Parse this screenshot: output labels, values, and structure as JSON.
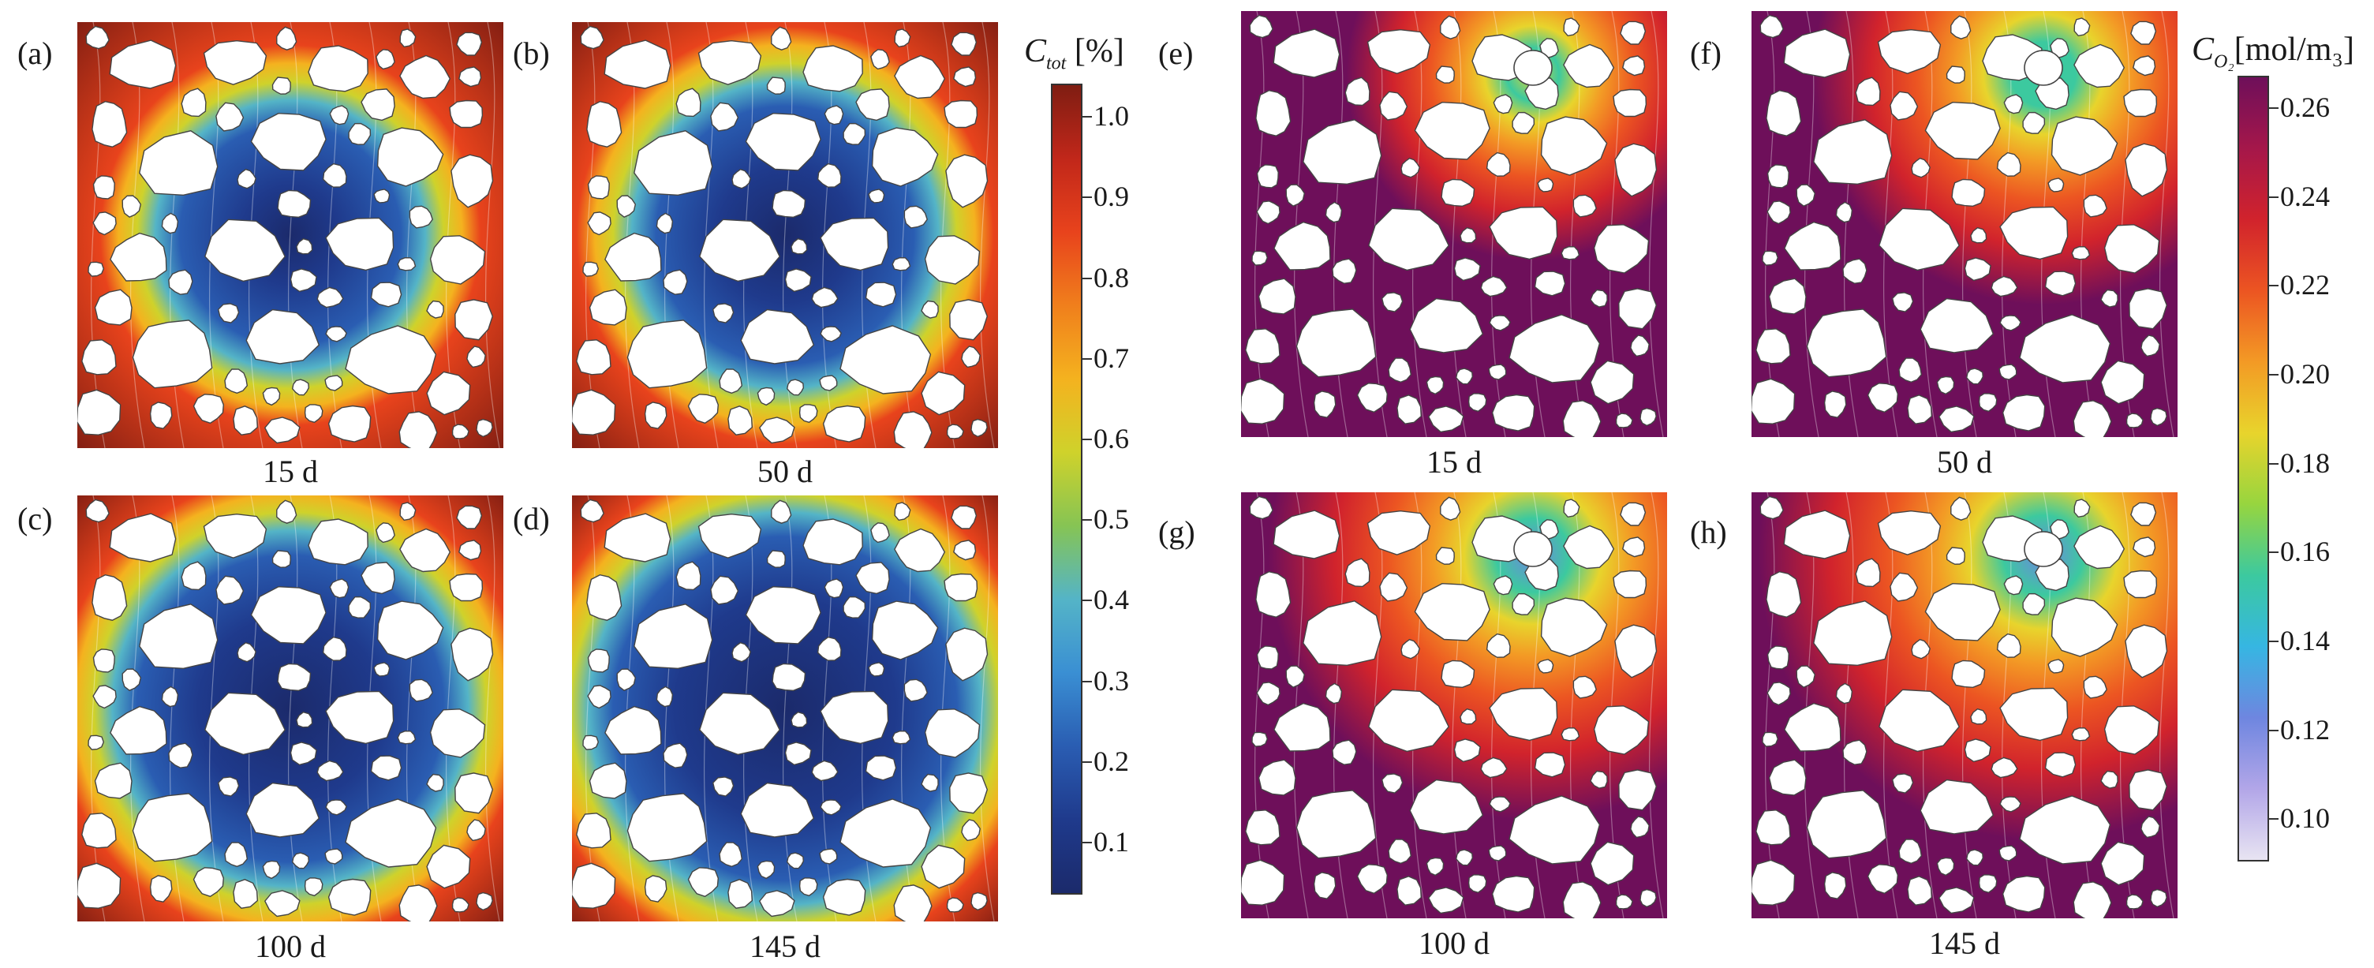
{
  "left_group": {
    "panels": [
      {
        "id": "a",
        "label": "(a)",
        "time": "15 d",
        "stage": 0
      },
      {
        "id": "b",
        "label": "(b)",
        "time": "50 d",
        "stage": 1
      },
      {
        "id": "c",
        "label": "(c)",
        "time": "100 d",
        "stage": 2
      },
      {
        "id": "d",
        "label": "(d)",
        "time": "145 d",
        "stage": 3
      }
    ],
    "colorbar": {
      "symbol": "C",
      "subscript": "tot",
      "unit": " [%]",
      "ticks": [
        "1.0",
        "0.9",
        "0.8",
        "0.7",
        "0.6",
        "0.5",
        "0.4",
        "0.3",
        "0.2",
        "0.1"
      ],
      "gradient": [
        "#7f1d12",
        "#c1271a",
        "#e8431c",
        "#f07f1c",
        "#f4b21f",
        "#cfd22b",
        "#86c454",
        "#54b4c7",
        "#3a8fd3",
        "#2a5db2",
        "#1f3a8c",
        "#1b2a6b"
      ]
    }
  },
  "right_group": {
    "panels": [
      {
        "id": "e",
        "label": "(e)",
        "time": "15 d",
        "stage": 0
      },
      {
        "id": "f",
        "label": "(f)",
        "time": "50 d",
        "stage": 1
      },
      {
        "id": "g",
        "label": "(g)",
        "time": "100 d",
        "stage": 2
      },
      {
        "id": "h",
        "label": "(h)",
        "time": "145 d",
        "stage": 3
      }
    ],
    "colorbar": {
      "symbol": "C",
      "subscript": "O₂",
      "unit": "[mol/m₃]",
      "ticks": [
        "0.26",
        "0.24",
        "0.22",
        "0.20",
        "0.18",
        "0.16",
        "0.14",
        "0.12",
        "0.10"
      ],
      "gradient": [
        "#6e0f5a",
        "#a5174a",
        "#d1232c",
        "#ec5522",
        "#f39a25",
        "#e8d42c",
        "#97d53f",
        "#3cc99f",
        "#36b6e2",
        "#6e86e0",
        "#b2a6e8",
        "#e8e4f2"
      ]
    }
  }
}
